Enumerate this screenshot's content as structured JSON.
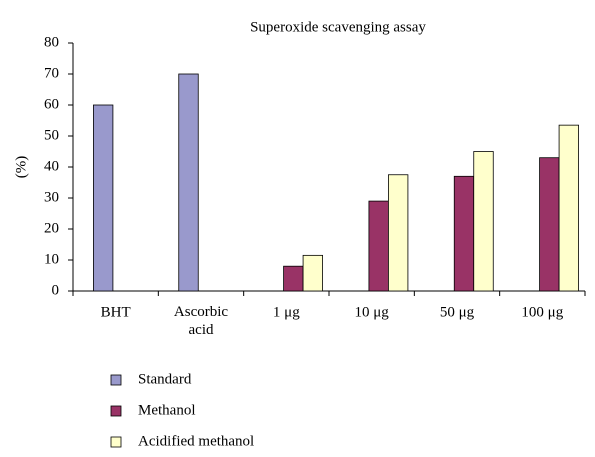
{
  "chart_data": {
    "type": "bar",
    "title": "Superoxide scavenging assay",
    "y_label": "(%)",
    "categories": [
      "BHT",
      "Ascorbic acid",
      "1 μg",
      "10 μg",
      "50 μg",
      "100 μg"
    ],
    "series": [
      {
        "name": "Standard",
        "color": "#9999cc",
        "values": [
          60,
          70,
          null,
          null,
          null,
          null
        ]
      },
      {
        "name": "Methanol",
        "color": "#993366",
        "values": [
          null,
          null,
          8,
          29,
          37,
          43
        ]
      },
      {
        "name": "Acidified methanol",
        "color": "#ffffcc",
        "values": [
          null,
          null,
          11.5,
          37.5,
          45,
          53.5
        ]
      }
    ],
    "ylim": [
      0,
      80
    ],
    "yticks": [
      0,
      10,
      20,
      30,
      40,
      50,
      60,
      70,
      80
    ],
    "legend": "bottom"
  }
}
